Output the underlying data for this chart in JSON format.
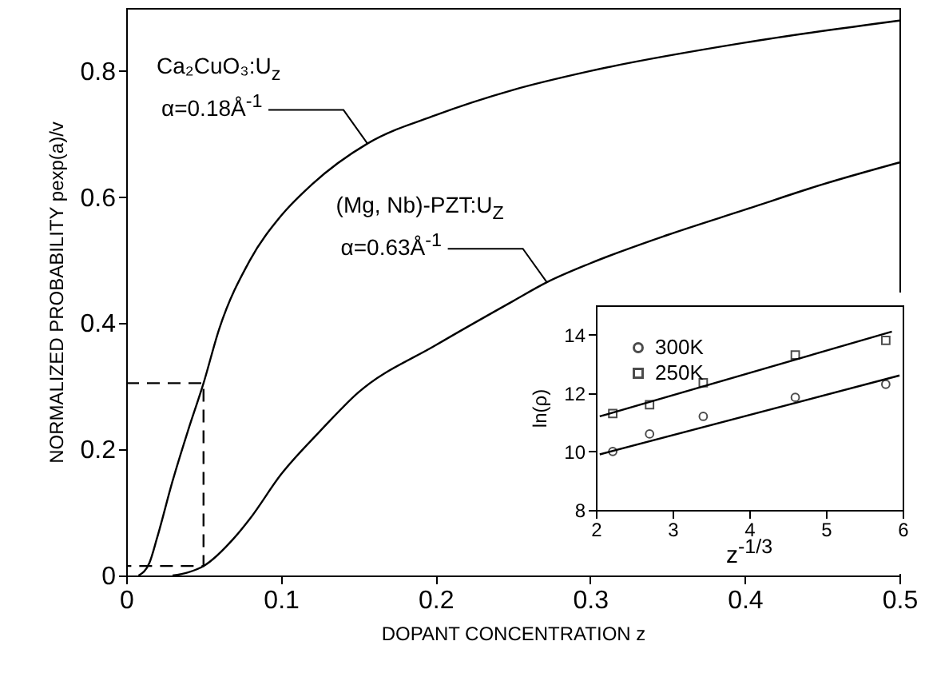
{
  "chart_data": [
    {
      "type": "line",
      "xlabel": "DOPANT CONCENTRATION z",
      "ylabel": "NORMALIZED PROBABILITY pexp(a)/v",
      "xlim": [
        0,
        0.5
      ],
      "ylim": [
        0,
        0.9
      ],
      "xticks": [
        0,
        0.1,
        0.2,
        0.3,
        0.4,
        0.5
      ],
      "yticks": [
        0,
        0.2,
        0.4,
        0.6,
        0.8
      ],
      "grid": false,
      "legend": false,
      "series": [
        {
          "color": "#000000",
          "x": [
            0.008,
            0.015,
            0.02,
            0.03,
            0.04,
            0.05,
            0.06,
            0.08,
            0.1,
            0.12,
            0.156,
            0.2,
            0.25,
            0.3,
            0.4,
            0.5
          ],
          "values": [
            0,
            0.02,
            0.06,
            0.15,
            0.23,
            0.305,
            0.39,
            0.5,
            0.57,
            0.62,
            0.685,
            0.73,
            0.77,
            0.8,
            0.845,
            0.88
          ]
        },
        {
          "color": "#000000",
          "x": [
            0.03,
            0.04,
            0.05,
            0.07,
            0.08,
            0.1,
            0.125,
            0.15,
            0.2,
            0.25,
            0.272,
            0.3,
            0.35,
            0.4,
            0.45,
            0.5
          ],
          "values": [
            0,
            0.005,
            0.015,
            0.06,
            0.09,
            0.16,
            0.228,
            0.29,
            0.365,
            0.435,
            0.465,
            0.495,
            0.54,
            0.58,
            0.62,
            0.655
          ]
        },
        {
          "color": "#000000",
          "line_style": "dashed",
          "x": [
            0,
            0.05,
            0.05,
            0
          ],
          "values": [
            0.305,
            0.305,
            0.015,
            0.015
          ]
        }
      ],
      "annotations": [
        "Ca₂CuO₃:U$_{z}$",
        {
          "text": "α=0.18Å$^{-1}$",
          "x": 0.156,
          "y": 0.685
        },
        "(Mg, Nb)-PZT:U$_{Z}$",
        {
          "text": "α=0.63Å$^{-1}$",
          "x": 0.272,
          "y": 0.465
        }
      ]
    },
    {
      "type": "scatter",
      "xlabel": "z$^{-1/3}$",
      "ylabel": "ln(ρ)",
      "xlim": [
        2,
        6
      ],
      "ylim": [
        8,
        15
      ],
      "xticks": [
        2,
        3,
        4,
        5,
        6
      ],
      "yticks": [
        8,
        10,
        12,
        14
      ],
      "grid": false,
      "legend": "top left",
      "series": [
        {
          "name": "300K",
          "color": "#000000",
          "marker": "circle",
          "x": [
            2.22,
            2.7,
            3.4,
            4.6,
            5.78
          ],
          "values": [
            10.0,
            10.6,
            11.2,
            11.85,
            12.3
          ]
        },
        {
          "name": "250K",
          "color": "#000000",
          "marker": "square",
          "x": [
            2.22,
            2.7,
            3.4,
            4.6,
            5.78
          ],
          "values": [
            11.3,
            11.6,
            12.35,
            13.3,
            13.8
          ]
        },
        {
          "type": "line",
          "color": "#000000",
          "x": [
            2.05,
            5.96
          ],
          "values": [
            9.9,
            12.6
          ]
        },
        {
          "type": "line",
          "color": "#000000",
          "x": [
            2.05,
            5.86
          ],
          "values": [
            11.2,
            14.1
          ]
        }
      ]
    }
  ]
}
